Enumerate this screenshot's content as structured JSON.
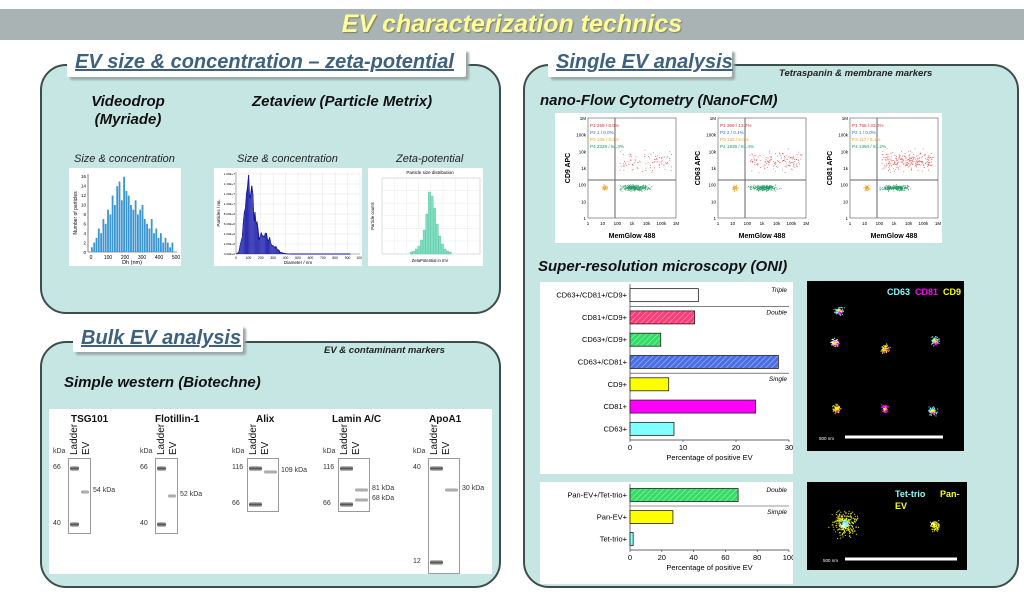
{
  "title": "EV characterization technics",
  "sections": {
    "size": {
      "tab": "EV size & concentration – zeta-potential",
      "videodrop": "Videodrop\n(Myriade)",
      "zetaview": "Zetaview (Particle Metrix)",
      "cap_size1": "Size & concentration",
      "cap_size2": "Size & concentration",
      "cap_zeta": "Zeta-potential",
      "videodrop_chart": {
        "ylabel": "Number of particles",
        "xlabel": "Dh (nm)",
        "x_ticks": [
          "0",
          "100",
          "200",
          "300",
          "400",
          "500"
        ],
        "y_ticks": [
          "0",
          "2",
          "4",
          "6",
          "8",
          "10",
          "12",
          "14",
          "16"
        ]
      },
      "zetaview_chart": {
        "ylabel": "Particles / mL",
        "xlabel": "Diameter / nm",
        "x_ticks": [
          "0",
          "100",
          "200",
          "300",
          "400",
          "500",
          "600",
          "700",
          "800",
          "900",
          "1000"
        ],
        "y_ticks": [
          "0,00E+0",
          "2,00E+6",
          "4,00E+6",
          "6,00E+6",
          "8,00E+6",
          "1,00E+7",
          "1,20E+7",
          "1,40E+7",
          "1,60E+7"
        ]
      },
      "zeta_chart": {
        "title": "Particle size distribution",
        "ylabel": "Particle counts",
        "xlabel": "ZetaPotential in mV"
      }
    },
    "bulk": {
      "tab": "Bulk EV analysis",
      "note": "EV & contaminant markers",
      "subtitle": "Simple western (Biotechne)",
      "blots": [
        {
          "name": "TSG101",
          "lanes": [
            "Ladder",
            "EV"
          ],
          "kda": "kDa",
          "markers": [
            "66",
            "40"
          ],
          "bands": [
            "54 kDa"
          ]
        },
        {
          "name": "Flotillin-1",
          "lanes": [
            "Ladder",
            "EV"
          ],
          "kda": "kDa",
          "markers": [
            "66",
            "40"
          ],
          "bands": [
            "52 kDa"
          ]
        },
        {
          "name": "Alix",
          "lanes": [
            "Ladder",
            "EV"
          ],
          "kda": "kDa",
          "markers": [
            "116",
            "66"
          ],
          "bands": [
            "109 kDa"
          ]
        },
        {
          "name": "Lamin A/C",
          "lanes": [
            "Ladder",
            "EV"
          ],
          "kda": "kDa",
          "markers": [
            "116",
            "66"
          ],
          "bands": [
            "81 kDa",
            "68 kDa"
          ]
        },
        {
          "name": "ApoA1",
          "lanes": [
            "Ladder",
            "EV"
          ],
          "kda": "kDa",
          "markers": [
            "40",
            "12"
          ],
          "bands": [
            "30 kDa"
          ]
        }
      ]
    },
    "single": {
      "tab": "Single EV analysis",
      "note": "Tetraspanin & membrane markers",
      "nanofcm": "nano-Flow Cytometry (NanoFCM)",
      "oni": "Super-resolution microscopy (ONI)",
      "flow": [
        {
          "ylabel": "CD9 APC",
          "xlabel": "MemGlow 488",
          "gates": [
            "P1  269 / 8.0%",
            "P2  1 / 0.0%",
            "P3  109 / 3.3%",
            "P4  2328 / 84.3%"
          ]
        },
        {
          "ylabel": "CD63 APC",
          "xlabel": "MemGlow 488",
          "gates": [
            "P1  369 / 13.7%",
            "P2  2 / 0.1%",
            "P3  135 / 5.0%",
            "P4  1838 / 81.4%"
          ]
        },
        {
          "ylabel": "CD81 APC",
          "xlabel": "MemGlow 488",
          "gates": [
            "P1  766 / 33.0%",
            "P2  1 / 0.0%",
            "P3  117 / 5.1%",
            "P4  1394 / 61.2%"
          ]
        }
      ],
      "flow_x_ticks": [
        "1",
        "10",
        "100",
        "1k",
        "10k",
        "100k",
        "1M"
      ],
      "flow_y_ticks": [
        "1",
        "10",
        "100",
        "1k",
        "10k",
        "100k",
        "1M"
      ],
      "micro1": {
        "labels": [
          "CD63",
          "CD81",
          "CD9"
        ],
        "scale": "500 nm"
      },
      "micro2": {
        "labels": [
          "Tet-trio",
          "Pan-",
          "EV"
        ],
        "scale": "500 nm"
      }
    }
  },
  "colors": {
    "panel": "#c6e6e4",
    "tab_text": "#3d6180",
    "title": "#ffff99",
    "cyan": "#7fffff",
    "magenta": "#ff00ff",
    "yellow": "#ffff00",
    "blue_hatch": "#4a6ee8",
    "red_hatch": "#ff3c78",
    "green_hatch": "#33dd66"
  },
  "chart_data": [
    {
      "type": "bar",
      "title": "",
      "xlabel": "Percentage of positive EV",
      "ylabel": "",
      "xlim": [
        0,
        30
      ],
      "x_ticks": [
        "0",
        "10",
        "20",
        "30"
      ],
      "categories": [
        "CD63+/CD81+/CD9+",
        "CD81+/CD9+",
        "CD63+/CD9+",
        "CD63+/CD81+",
        "CD9+",
        "CD81+",
        "CD63+"
      ],
      "values": [
        12.9,
        12.2,
        5.8,
        28,
        7.3,
        23.7,
        8.3
      ],
      "fills": [
        "#ffffff",
        "red-hatch",
        "green-hatch",
        "blue-hatch",
        "#ffff00",
        "#ff00ff",
        "#7fffff"
      ],
      "groups": [
        {
          "name": "Triple",
          "rows": [
            0
          ]
        },
        {
          "name": "Double",
          "rows": [
            1,
            2,
            3
          ]
        },
        {
          "name": "Single",
          "rows": [
            4,
            5,
            6
          ]
        }
      ]
    },
    {
      "type": "bar",
      "title": "",
      "xlabel": "Percentage of positive EV",
      "ylabel": "",
      "xlim": [
        0,
        100
      ],
      "x_ticks": [
        "0",
        "20",
        "40",
        "60",
        "80",
        "100"
      ],
      "categories": [
        "Pan-EV+/Tet-trio+",
        "Pan-EV+",
        "Tet-trio+"
      ],
      "values": [
        68,
        27,
        2
      ],
      "fills": [
        "green-hatch",
        "#ffff00",
        "#7fffff"
      ],
      "groups": [
        {
          "name": "Double",
          "rows": [
            0
          ]
        },
        {
          "name": "Simple",
          "rows": [
            1,
            2
          ]
        }
      ]
    }
  ]
}
